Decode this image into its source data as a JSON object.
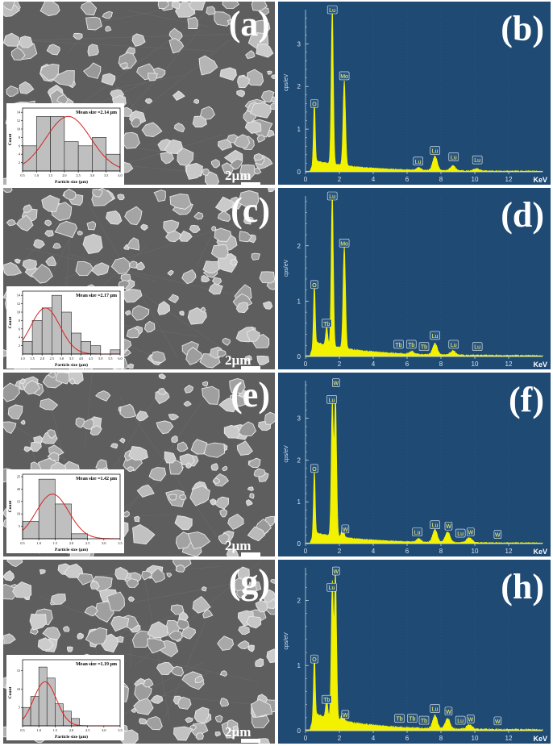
{
  "figure": {
    "panels": [
      {
        "letter": "(a)",
        "scale_bar": "2µm",
        "inset": {
          "mean_label": "Mean size =2.14 µm",
          "xlabel": "Particle size (µm)",
          "ylabel": "Count"
        }
      },
      {
        "letter": "(b)",
        "ylabel": "cps/eV",
        "xunit": "KeV"
      },
      {
        "letter": "(c)",
        "scale_bar": "2µm",
        "inset": {
          "mean_label": "Mean size =2.17 µm",
          "xlabel": "Particle size (µm)",
          "ylabel": "Count"
        }
      },
      {
        "letter": "(d)",
        "ylabel": "cps/eV",
        "xunit": "KeV"
      },
      {
        "letter": "(e)",
        "scale_bar": "2µm",
        "inset": {
          "mean_label": "Mean size =1.42 µm",
          "xlabel": "Particle size (µm)",
          "ylabel": "Count"
        }
      },
      {
        "letter": "(f)",
        "ylabel": "cps/eV",
        "xunit": "KeV"
      },
      {
        "letter": "(g)",
        "scale_bar": "2µm",
        "inset": {
          "mean_label": "Mean size =1.19 µm",
          "xlabel": "Particle size (µm)",
          "ylabel": "Count"
        }
      },
      {
        "letter": "(h)",
        "ylabel": "cps/eV",
        "xunit": "KeV"
      }
    ]
  },
  "colors": {
    "eds_background": "#1f4a74",
    "spectrum": "#f2f200",
    "fit_curve": "#d92020",
    "hist_bar": "#bfbfbf"
  },
  "chart_data": [
    {
      "id": "a",
      "type": "bar",
      "title": "Mean size =2.14 µm",
      "xlabel": "Particle size (µm)",
      "ylabel": "Count",
      "bin_edges": [
        0.5,
        1.0,
        1.5,
        2.0,
        2.5,
        3.0,
        3.5,
        4.0
      ],
      "values": [
        6,
        13,
        13,
        7,
        6,
        8,
        4
      ],
      "x_ticks": [
        "0.5",
        "1.0",
        "1.5",
        "2.0",
        "2.5",
        "3.0",
        "3.5",
        "4.0"
      ],
      "y_ticks": [
        2,
        4,
        6,
        8,
        10,
        12,
        14
      ],
      "xlim": [
        0.5,
        4.0
      ],
      "ylim": [
        0,
        15
      ],
      "fit": {
        "type": "gaussian",
        "mean": 2.14,
        "sigma": 0.8,
        "amplitude": 13
      }
    },
    {
      "id": "b",
      "type": "line",
      "xlabel": "KeV",
      "ylabel": "cps/eV",
      "xlim": [
        0,
        14
      ],
      "ylim": [
        0,
        3.8
      ],
      "x_ticks": [
        0,
        2,
        4,
        6,
        8,
        10,
        12
      ],
      "y_ticks": [
        0,
        1,
        2,
        3
      ],
      "peaks": [
        {
          "label": "O",
          "energy": 0.52,
          "height": 1.45
        },
        {
          "label": "Lu",
          "energy": 1.58,
          "height": 3.7
        },
        {
          "label": "Mo",
          "energy": 2.29,
          "height": 2.0
        },
        {
          "label": "Lu",
          "energy": 7.65,
          "height": 0.33
        },
        {
          "label": "Lu",
          "energy": 8.7,
          "height": 0.12
        },
        {
          "label": "Lu",
          "energy": 6.7,
          "height": 0.06
        },
        {
          "label": "Lu",
          "energy": 10.1,
          "height": 0.05
        }
      ],
      "peak_labels": [
        {
          "label": "Lu",
          "energy": 1.58,
          "label_y": 3.8
        },
        {
          "label": "Mo",
          "energy": 2.29,
          "label_y": 2.25
        },
        {
          "label": "O",
          "energy": 0.52,
          "label_y": 1.6
        },
        {
          "label": "Lu",
          "energy": 6.65,
          "label_y": 0.25
        },
        {
          "label": "Lu",
          "energy": 7.65,
          "label_y": 0.5
        },
        {
          "label": "Lu",
          "energy": 8.75,
          "label_y": 0.35
        },
        {
          "label": "Lu",
          "energy": 10.15,
          "label_y": 0.28
        }
      ]
    },
    {
      "id": "c",
      "type": "bar",
      "title": "Mean size =2.17 µm",
      "xlabel": "Particle size (µm)",
      "ylabel": "Count",
      "bin_edges": [
        1.0,
        1.5,
        2.0,
        2.5,
        3.0,
        3.5,
        4.0,
        4.5,
        5.0,
        5.5,
        6.0
      ],
      "values": [
        3,
        8,
        11,
        14,
        10,
        5,
        3,
        2,
        0,
        1
      ],
      "x_ticks": [
        "1.0",
        "1.5",
        "2.0",
        "2.5",
        "3.0",
        "3.5",
        "4.0",
        "4.5",
        "5.0",
        "5.5",
        "6.0"
      ],
      "y_ticks": [
        2,
        4,
        6,
        8,
        10,
        12,
        14
      ],
      "xlim": [
        1.0,
        6.0
      ],
      "ylim": [
        0,
        15
      ],
      "fit": {
        "type": "gaussian",
        "mean": 2.17,
        "sigma": 0.75,
        "amplitude": 11
      }
    },
    {
      "id": "d",
      "type": "line",
      "xlabel": "KeV",
      "ylabel": "cps/eV",
      "xlim": [
        0,
        14
      ],
      "ylim": [
        0,
        2.9
      ],
      "x_ticks": [
        0,
        2,
        4,
        6,
        8,
        10,
        12
      ],
      "y_ticks": [
        0,
        1,
        2
      ],
      "peaks": [
        {
          "label": "O",
          "energy": 0.52,
          "height": 1.1
        },
        {
          "label": "Tb",
          "energy": 1.25,
          "height": 0.35
        },
        {
          "label": "Lu",
          "energy": 1.58,
          "height": 2.8
        },
        {
          "label": "Mo",
          "energy": 2.29,
          "height": 1.85
        },
        {
          "label": "Lu",
          "energy": 7.65,
          "height": 0.2
        },
        {
          "label": "Lu",
          "energy": 8.7,
          "height": 0.08
        },
        {
          "label": "Tb",
          "energy": 6.27,
          "height": 0.05
        }
      ],
      "peak_labels": [
        {
          "label": "Lu",
          "energy": 1.58,
          "label_y": 2.9
        },
        {
          "label": "Mo",
          "energy": 2.29,
          "label_y": 2.05
        },
        {
          "label": "O",
          "energy": 0.52,
          "label_y": 1.3
        },
        {
          "label": "Tb",
          "energy": 1.25,
          "label_y": 0.6
        },
        {
          "label": "Tb",
          "energy": 5.5,
          "label_y": 0.22
        },
        {
          "label": "Tb",
          "energy": 6.25,
          "label_y": 0.22
        },
        {
          "label": "Tb",
          "energy": 7.0,
          "label_y": 0.18
        },
        {
          "label": "Lu",
          "energy": 7.65,
          "label_y": 0.38
        },
        {
          "label": "Lu",
          "energy": 8.75,
          "label_y": 0.22
        },
        {
          "label": "Lu",
          "energy": 10.15,
          "label_y": 0.18
        }
      ]
    },
    {
      "id": "e",
      "type": "bar",
      "title": "Mean size =1.42 µm",
      "xlabel": "Particle size (µm)",
      "ylabel": "Count",
      "bin_edges": [
        0.5,
        1.0,
        1.5,
        2.0,
        2.5,
        3.0,
        3.5
      ],
      "values": [
        7,
        24,
        14,
        2,
        0,
        0
      ],
      "x_ticks": [
        "0.5",
        "1.0",
        "1.5",
        "2.0",
        "2.5",
        "3.0",
        "3.5"
      ],
      "y_ticks": [
        5,
        10,
        15,
        20,
        25
      ],
      "xlim": [
        0.5,
        3.5
      ],
      "ylim": [
        0,
        26
      ],
      "fit": {
        "type": "gaussian",
        "mean": 1.42,
        "sigma": 0.5,
        "amplitude": 18
      }
    },
    {
      "id": "f",
      "type": "line",
      "xlabel": "KeV",
      "ylabel": "cps/eV",
      "xlim": [
        0,
        14
      ],
      "ylim": [
        0,
        3.9
      ],
      "x_ticks": [
        0,
        2,
        4,
        6,
        8,
        10,
        12
      ],
      "y_ticks": [
        0,
        1,
        2,
        3
      ],
      "peaks": [
        {
          "label": "O",
          "energy": 0.52,
          "height": 1.55
        },
        {
          "label": "Lu",
          "energy": 1.58,
          "height": 3.2
        },
        {
          "label": "W",
          "energy": 1.77,
          "height": 3.35
        },
        {
          "label": "W",
          "energy": 2.2,
          "height": 0.25
        },
        {
          "label": "Lu",
          "energy": 7.65,
          "height": 0.3
        },
        {
          "label": "W",
          "energy": 8.4,
          "height": 0.25
        },
        {
          "label": "W",
          "energy": 9.67,
          "height": 0.12
        },
        {
          "label": "Lu",
          "energy": 6.7,
          "height": 0.08
        }
      ],
      "peak_labels": [
        {
          "label": "W",
          "energy": 1.8,
          "label_y": 3.85
        },
        {
          "label": "Lu",
          "energy": 1.55,
          "label_y": 3.45
        },
        {
          "label": "O",
          "energy": 0.52,
          "label_y": 1.8
        },
        {
          "label": "W",
          "energy": 2.35,
          "label_y": 0.35
        },
        {
          "label": "Lu",
          "energy": 6.6,
          "label_y": 0.28
        },
        {
          "label": "Lu",
          "energy": 7.65,
          "label_y": 0.45
        },
        {
          "label": "W",
          "energy": 8.45,
          "label_y": 0.42
        },
        {
          "label": "Lu",
          "energy": 9.15,
          "label_y": 0.25
        },
        {
          "label": "W",
          "energy": 9.75,
          "label_y": 0.28
        },
        {
          "label": "W",
          "energy": 11.35,
          "label_y": 0.22
        }
      ]
    },
    {
      "id": "g",
      "type": "bar",
      "title": "Mean size =1.19 µm",
      "xlabel": "Particle size (µm)",
      "ylabel": "Count",
      "bin_edges": [
        0.5,
        0.75,
        1.0,
        1.25,
        1.5,
        1.75,
        2.0,
        2.25,
        2.5,
        2.75,
        3.0,
        3.25,
        3.5
      ],
      "values": [
        5,
        8,
        16,
        13,
        6,
        4,
        2,
        0,
        0,
        0,
        0,
        0
      ],
      "x_ticks": [
        "0.5",
        "1.0",
        "1.5",
        "2.0",
        "2.5",
        "3.0",
        "3.5"
      ],
      "y_ticks": [
        5,
        10,
        15
      ],
      "xlim": [
        0.5,
        3.5
      ],
      "ylim": [
        0,
        18
      ],
      "fit": {
        "type": "gaussian",
        "mean": 1.19,
        "sigma": 0.35,
        "amplitude": 12
      }
    },
    {
      "id": "h",
      "type": "line",
      "xlabel": "KeV",
      "ylabel": "cps/eV",
      "xlim": [
        0,
        14
      ],
      "ylim": [
        0,
        2.5
      ],
      "x_ticks": [
        0,
        2,
        4,
        6,
        8,
        10,
        12
      ],
      "y_ticks": [
        0,
        1,
        2
      ],
      "peaks": [
        {
          "label": "O",
          "energy": 0.52,
          "height": 0.95
        },
        {
          "label": "Tb",
          "energy": 1.25,
          "height": 0.3
        },
        {
          "label": "Lu",
          "energy": 1.58,
          "height": 2.1
        },
        {
          "label": "W",
          "energy": 1.77,
          "height": 2.25
        },
        {
          "label": "W",
          "energy": 2.2,
          "height": 0.15
        },
        {
          "label": "Lu",
          "energy": 7.65,
          "height": 0.2
        },
        {
          "label": "W",
          "energy": 8.4,
          "height": 0.16
        },
        {
          "label": "W",
          "energy": 9.67,
          "height": 0.07
        }
      ],
      "peak_labels": [
        {
          "label": "W",
          "energy": 1.8,
          "label_y": 2.45
        },
        {
          "label": "Lu",
          "energy": 1.55,
          "label_y": 2.2
        },
        {
          "label": "O",
          "energy": 0.52,
          "label_y": 1.1
        },
        {
          "label": "Tb",
          "energy": 1.25,
          "label_y": 0.48
        },
        {
          "label": "W",
          "energy": 2.35,
          "label_y": 0.25
        },
        {
          "label": "Tb",
          "energy": 5.55,
          "label_y": 0.19
        },
        {
          "label": "Tb",
          "energy": 6.3,
          "label_y": 0.19
        },
        {
          "label": "Tb",
          "energy": 7.0,
          "label_y": 0.16
        },
        {
          "label": "Lu",
          "energy": 7.65,
          "label_y": 0.34
        },
        {
          "label": "W",
          "energy": 8.45,
          "label_y": 0.3
        },
        {
          "label": "Lu",
          "energy": 9.15,
          "label_y": 0.16
        },
        {
          "label": "W",
          "energy": 9.75,
          "label_y": 0.18
        },
        {
          "label": "W",
          "energy": 11.35,
          "label_y": 0.15
        }
      ]
    }
  ]
}
